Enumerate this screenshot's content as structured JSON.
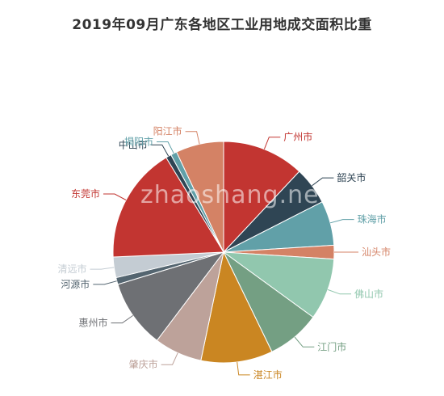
{
  "chart_data": {
    "type": "pie",
    "title": "2019年09月广东各地区工业用地成交面积比重",
    "categories": [
      "广州市",
      "韶关市",
      "珠海市",
      "汕头市",
      "佛山市",
      "江门市",
      "湛江市",
      "肇庆市",
      "惠州市",
      "河源市",
      "清远市",
      "东莞市",
      "中山市",
      "揭阳市",
      "阳江市"
    ],
    "values": [
      12.0,
      5.5,
      6.5,
      2.0,
      9.0,
      7.8,
      10.5,
      7.0,
      10.0,
      1.0,
      3.0,
      17.0,
      0.8,
      0.9,
      7.0
    ],
    "colors": [
      "#c23531",
      "#2f4554",
      "#61a0a8",
      "#d48265",
      "#91c7ae",
      "#749f83",
      "#ca8622",
      "#bda29a",
      "#6e7074",
      "#546570",
      "#c4ccd3",
      "#c23531",
      "#2f4554",
      "#61a0a8",
      "#d48265"
    ],
    "label_colors": [
      "#c23531",
      "#2f4554",
      "#61a0a8",
      "#d48265",
      "#91c7ae",
      "#749f83",
      "#ca8622",
      "#bda29a",
      "#6e7074",
      "#546570",
      "#c4ccd3",
      "#c23531",
      "#2f4554",
      "#61a0a8",
      "#d48265"
    ],
    "legend": "none"
  },
  "watermark": "zhaoshang.net"
}
